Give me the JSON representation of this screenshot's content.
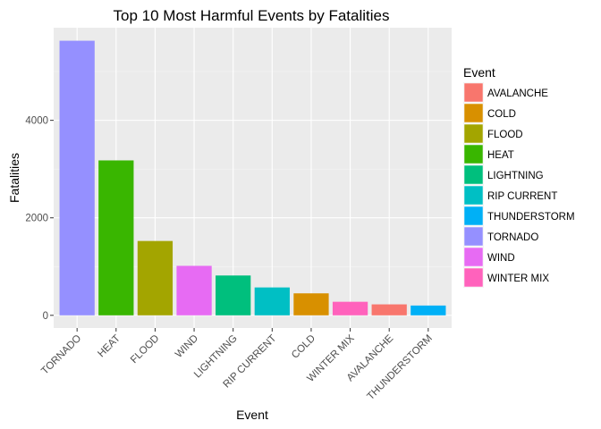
{
  "chart_data": {
    "type": "bar",
    "title": "Top 10 Most Harmful Events by Fatalities",
    "xlabel": "Event",
    "ylabel": "Fatalities",
    "ylim": [
      -260,
      5900
    ],
    "yticks": [
      0,
      2000,
      4000
    ],
    "grid": true,
    "legend_position": "right",
    "categories": [
      "TORNADO",
      "HEAT",
      "FLOOD",
      "WIND",
      "LIGHTNING",
      "RIP CURRENT",
      "COLD",
      "WINTER MIX",
      "AVALANCHE",
      "THUNDERSTORM"
    ],
    "values": [
      5633,
      3178,
      1525,
      1015,
      817,
      572,
      451,
      278,
      225,
      201
    ],
    "colors": {
      "TORNADO": "#9590FF",
      "HEAT": "#39B600",
      "FLOOD": "#A3A500",
      "WIND": "#E76BF3",
      "LIGHTNING": "#00BF7D",
      "RIP CURRENT": "#00BFC4",
      "COLD": "#D89000",
      "WINTER MIX": "#FF62BC",
      "AVALANCHE": "#F8766D",
      "THUNDERSTORM": "#00B0F6"
    },
    "legend": {
      "title": "Event",
      "entries": [
        "AVALANCHE",
        "COLD",
        "FLOOD",
        "HEAT",
        "LIGHTNING",
        "RIP CURRENT",
        "THUNDERSTORM",
        "TORNADO",
        "WIND",
        "WINTER MIX"
      ]
    }
  }
}
